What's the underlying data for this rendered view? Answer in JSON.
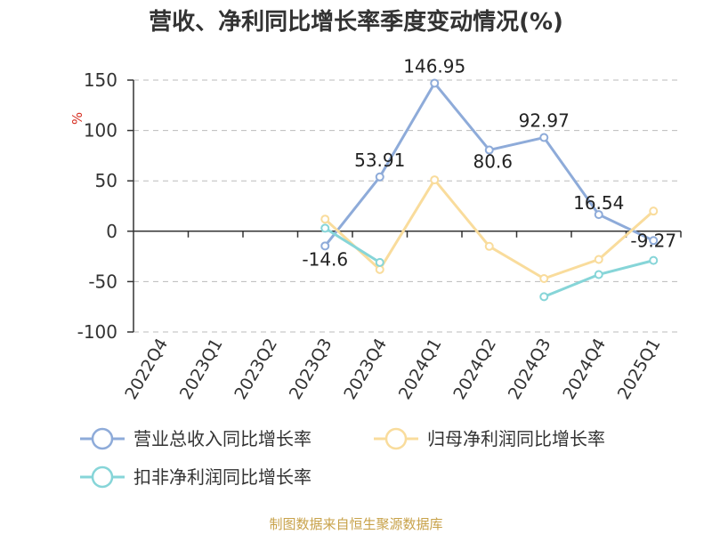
{
  "chart_data": {
    "type": "line",
    "title": "营收、净利同比增长率季度变动情况(%)",
    "ylabel": "%",
    "ylim": [
      -100,
      150
    ],
    "yticks": [
      150,
      100,
      50,
      0,
      -50,
      -100
    ],
    "categories": [
      "2022Q4",
      "2023Q1",
      "2023Q2",
      "2023Q3",
      "2023Q4",
      "2024Q1",
      "2024Q2",
      "2024Q3",
      "2024Q4",
      "2025Q1"
    ],
    "grid": true,
    "legend_position": "bottom",
    "series": [
      {
        "name": "营业总收入同比增长率",
        "color": "#8eabd9",
        "values": [
          null,
          null,
          null,
          -14.6,
          53.91,
          146.95,
          80.6,
          92.97,
          16.54,
          -9.27
        ],
        "labels": [
          "",
          "",
          "",
          "-14.6",
          "53.91",
          "146.95",
          "80.6",
          "92.97",
          "16.54",
          "-9.27"
        ]
      },
      {
        "name": "归母净利润同比增长率",
        "color": "#f9dc9c",
        "values": [
          null,
          null,
          null,
          12,
          -38,
          51,
          -15,
          -47,
          -28,
          20
        ]
      },
      {
        "name": "扣非净利润同比增长率",
        "color": "#86d5d8",
        "values": [
          null,
          null,
          null,
          3,
          -31,
          null,
          null,
          -65,
          -43,
          -29
        ]
      }
    ]
  },
  "footer": "制图数据来自恒生聚源数据库"
}
